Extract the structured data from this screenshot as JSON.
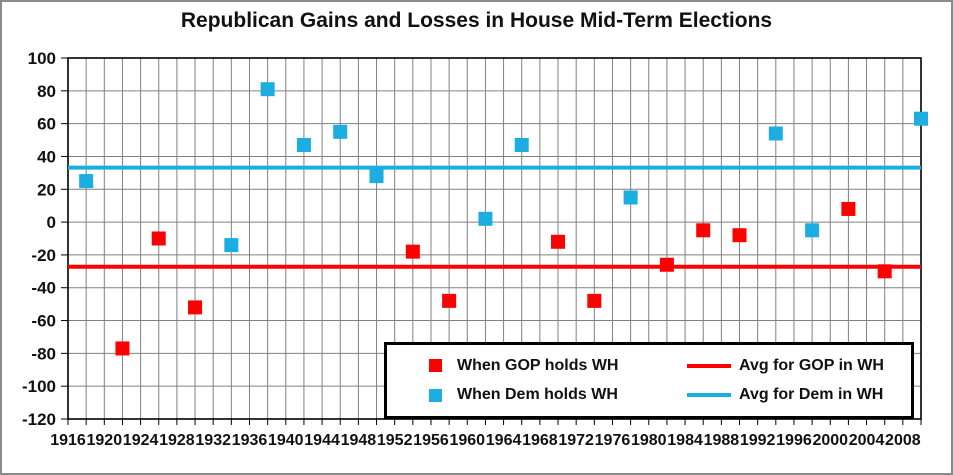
{
  "colors": {
    "gop": "#FF0000",
    "dem": "#1CAEE0",
    "grid": "#808080",
    "axis": "#000000",
    "text": "#111111"
  },
  "chart_data": {
    "type": "scatter",
    "title": "Republican Gains and Losses in House Mid-Term Elections",
    "xlabel": "",
    "ylabel": "",
    "x_axis": {
      "min": 1916,
      "max": 2010,
      "grid_step": 2,
      "label_step": 4,
      "tick_labels": [
        "1916",
        "1920",
        "1924",
        "1928",
        "1932",
        "1936",
        "1940",
        "1944",
        "1948",
        "1952",
        "1956",
        "1960",
        "1964",
        "1968",
        "1972",
        "1976",
        "1980",
        "1984",
        "1988",
        "1992",
        "1996",
        "2000",
        "2004",
        "2008"
      ]
    },
    "y_axis": {
      "min": -120,
      "max": 100,
      "tick_step": 20,
      "tick_labels": [
        "100",
        "80",
        "60",
        "40",
        "20",
        "0",
        "-20",
        "-40",
        "-60",
        "-80",
        "-100",
        "-120"
      ]
    },
    "grid": true,
    "legend_position": "inside-bottom-right",
    "series": [
      {
        "name": "When GOP holds WH",
        "color_key": "gop",
        "marker": "square",
        "points": [
          {
            "x": 1922,
            "y": -77
          },
          {
            "x": 1926,
            "y": -10
          },
          {
            "x": 1930,
            "y": -52
          },
          {
            "x": 1954,
            "y": -18
          },
          {
            "x": 1958,
            "y": -48
          },
          {
            "x": 1970,
            "y": -12
          },
          {
            "x": 1974,
            "y": -48
          },
          {
            "x": 1982,
            "y": -26
          },
          {
            "x": 1986,
            "y": -5
          },
          {
            "x": 1990,
            "y": -8
          },
          {
            "x": 2002,
            "y": 8
          },
          {
            "x": 2006,
            "y": -30
          }
        ]
      },
      {
        "name": "When Dem holds WH",
        "color_key": "dem",
        "marker": "square",
        "points": [
          {
            "x": 1918,
            "y": 25
          },
          {
            "x": 1934,
            "y": -14
          },
          {
            "x": 1938,
            "y": 81
          },
          {
            "x": 1942,
            "y": 47
          },
          {
            "x": 1946,
            "y": 55
          },
          {
            "x": 1950,
            "y": 28
          },
          {
            "x": 1962,
            "y": 2
          },
          {
            "x": 1966,
            "y": 47
          },
          {
            "x": 1978,
            "y": 15
          },
          {
            "x": 1994,
            "y": 54
          },
          {
            "x": 1998,
            "y": -5
          },
          {
            "x": 2010,
            "y": 63
          }
        ]
      }
    ],
    "avg_lines": [
      {
        "name": "Avg for GOP in WH",
        "value": -27.2,
        "color_key": "gop"
      },
      {
        "name": "Avg for Dem in WH",
        "value": 33.2,
        "color_key": "dem"
      }
    ]
  }
}
